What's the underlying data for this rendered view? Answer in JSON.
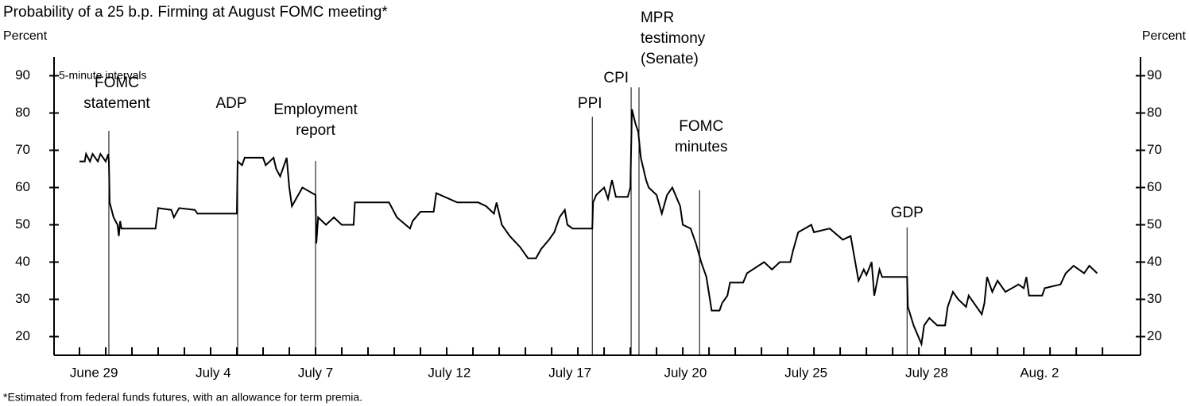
{
  "chart_data": {
    "type": "line",
    "title": "Probability of a 25 b.p. Firming at August FOMC meeting*",
    "y_label": "Percent",
    "y2_label": "Percent",
    "note": "5-minute intervals",
    "footnote": "*Estimated from federal funds futures, with an allowance for term premia.",
    "ylim": [
      15,
      95
    ],
    "yticks": [
      20,
      30,
      40,
      50,
      60,
      70,
      80,
      90
    ],
    "xlim": [
      -0.97,
      40.45
    ],
    "xticks": [
      {
        "value": 0.55,
        "label": "June 29"
      },
      {
        "value": 5.1,
        "label": "July 4"
      },
      {
        "value": 9,
        "label": "July 7"
      },
      {
        "value": 14.1,
        "label": "July 12"
      },
      {
        "value": 18.7,
        "label": "July 17"
      },
      {
        "value": 23.1,
        "label": "July 20"
      },
      {
        "value": 27.7,
        "label": "July 25"
      },
      {
        "value": 32.3,
        "label": "July 28"
      },
      {
        "value": 36.6,
        "label": "Aug. 2"
      }
    ],
    "xminor": [
      0,
      1,
      2,
      3,
      4,
      5,
      6,
      7,
      8,
      9,
      10,
      11,
      12,
      13,
      14,
      15,
      16,
      17,
      18,
      19,
      20,
      21,
      22,
      23,
      24,
      25,
      26,
      27,
      28,
      29,
      30,
      31,
      32,
      33,
      34,
      35,
      36,
      37,
      38,
      39
    ],
    "series": [
      {
        "color": "#000000",
        "x": [
          0,
          0.2,
          0.25,
          0.4,
          0.5,
          0.7,
          0.8,
          1.0,
          1.1,
          1.12,
          1.15,
          1.3,
          1.45,
          1.5,
          1.55,
          1.6,
          2.9,
          3.0,
          3.5,
          3.6,
          3.8,
          4.4,
          4.5,
          6.0,
          6.03,
          6.2,
          6.3,
          7.0,
          7.1,
          7.4,
          7.5,
          7.65,
          7.9,
          8.0,
          8.1,
          8.5,
          9.0,
          9.03,
          9.1,
          9.4,
          9.7,
          10.0,
          10.45,
          10.5,
          11.8,
          12.1,
          12.6,
          12.7,
          13.0,
          13.5,
          13.6,
          14.4,
          15.2,
          15.5,
          15.8,
          15.9,
          16.1,
          16.4,
          16.8,
          17.1,
          17.4,
          17.6,
          17.9,
          18.1,
          18.3,
          18.5,
          18.6,
          18.8,
          19.55,
          19.58,
          19.7,
          20.0,
          20.15,
          20.3,
          20.45,
          20.9,
          21.0,
          21.06,
          21.2,
          21.3,
          21.4,
          21.6,
          21.7,
          22.0,
          22.2,
          22.4,
          22.6,
          22.9,
          23.0,
          23.3,
          23.5,
          23.7,
          23.9,
          24.1,
          24.4,
          24.5,
          24.7,
          24.8,
          25.3,
          25.45,
          26.1,
          26.4,
          26.7,
          27.1,
          27.2,
          27.4,
          27.9,
          28.0,
          28.6,
          29.1,
          29.4,
          29.5,
          29.7,
          29.9,
          30.0,
          30.2,
          30.3,
          30.5,
          30.6,
          31.55,
          31.58,
          31.8,
          32.1,
          32.2,
          32.4,
          32.7,
          33.0,
          33.1,
          33.3,
          33.5,
          33.8,
          33.9,
          34.4,
          34.5,
          34.6,
          34.8,
          35.0,
          35.3,
          35.8,
          36.0,
          36.1,
          36.2,
          36.7,
          36.8,
          37.4,
          37.6,
          37.9,
          38.3,
          38.5,
          38.8
        ],
        "values": [
          67,
          67,
          69,
          67,
          69,
          67,
          69,
          67,
          69,
          67,
          56,
          52,
          50,
          47,
          51,
          49,
          49,
          54.5,
          54,
          52,
          54.5,
          54,
          53,
          53,
          67,
          66,
          68,
          68,
          66,
          68,
          65,
          63,
          68,
          60,
          55,
          60,
          58,
          45,
          52,
          50,
          52,
          50,
          50,
          56,
          56,
          52,
          49,
          51,
          53.5,
          53.5,
          58.5,
          56,
          56,
          55,
          53,
          56,
          50,
          47,
          44,
          41,
          41,
          43.5,
          46,
          48,
          52,
          54,
          50,
          49,
          49,
          56,
          58,
          60,
          57,
          62,
          57.5,
          57.5,
          60,
          81,
          77,
          75,
          68,
          62,
          60,
          58,
          53,
          58,
          60,
          55,
          50,
          49,
          45,
          40,
          36,
          27,
          27,
          29,
          31,
          34.5,
          34.5,
          37,
          40,
          38,
          40,
          40,
          43,
          48,
          50,
          48,
          49,
          46,
          47,
          43,
          35,
          38,
          36.5,
          40,
          31,
          38,
          36,
          36,
          28,
          23,
          18,
          23,
          25,
          23,
          23,
          28,
          32,
          30,
          28,
          31,
          26,
          29,
          36,
          32,
          35,
          32,
          34,
          33,
          36,
          31,
          31,
          33,
          34,
          37,
          39,
          37,
          39,
          37
        ]
      }
    ],
    "events": [
      {
        "lines": [
          "FOMC",
          "statement"
        ],
        "x": 1.12,
        "top": 75.2
      },
      {
        "lines": [
          "ADP"
        ],
        "x": 6.03,
        "top": 75.2
      },
      {
        "lines": [
          "Employment",
          "report"
        ],
        "x": 9.0,
        "top": 67.1
      },
      {
        "lines": [
          "PPI"
        ],
        "x": 19.55,
        "top": 79
      },
      {
        "lines": [
          "CPI"
        ],
        "x": 21.03,
        "top": 86.9
      },
      {
        "lines": [
          "MPR",
          "testimony",
          "(Senate)"
        ],
        "x": 21.33,
        "top": 86.9
      },
      {
        "lines": [
          "FOMC",
          "minutes"
        ],
        "x": 23.64,
        "top": 59.3
      },
      {
        "lines": [
          "GDP"
        ],
        "x": 31.55,
        "top": 49.3
      }
    ]
  }
}
